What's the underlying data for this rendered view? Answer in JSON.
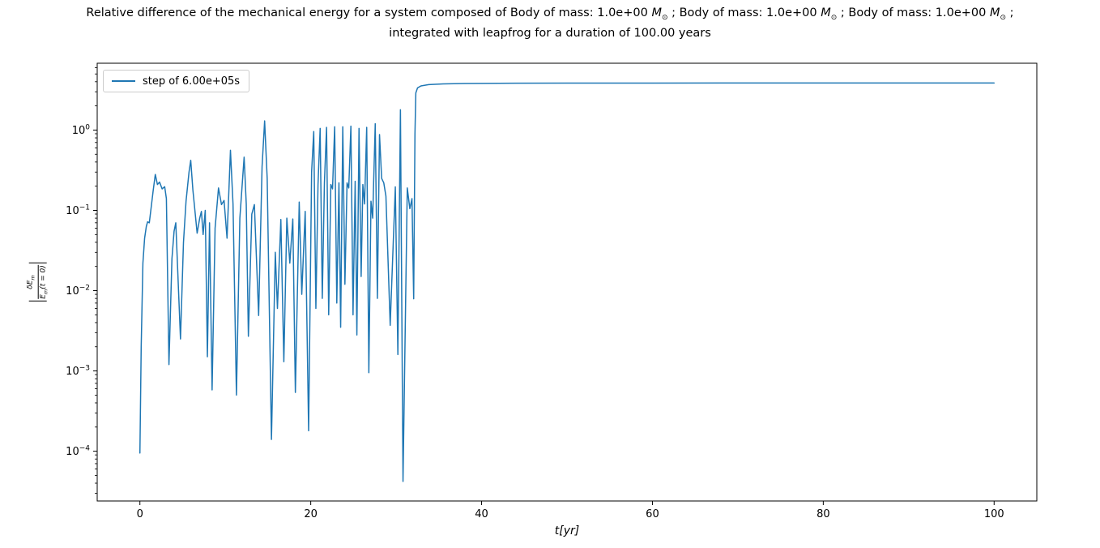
{
  "figure": {
    "title_line1_parts": [
      {
        "text": "Relative difference of the mechanical energy for a system composed of Body of mass: 1.0e+00 "
      },
      {
        "text": "M",
        "italic": true
      },
      {
        "text": "⊙",
        "sub": true
      },
      {
        "text": " ; Body of mass: 1.0e+00 "
      },
      {
        "text": "M",
        "italic": true
      },
      {
        "text": "⊙",
        "sub": true
      },
      {
        "text": " ; Body of mass: 1.0e+00 "
      },
      {
        "text": "M",
        "italic": true
      },
      {
        "text": "⊙",
        "sub": true
      },
      {
        "text": " ;"
      }
    ],
    "title_line2": "integrated with leapfrog for a duration of 100.00 years"
  },
  "chart_data": {
    "type": "line",
    "title": "Relative difference of the mechanical energy for a system composed of Body of mass: 1.0e+00 M⊙ ; Body of mass: 1.0e+00 M⊙ ; Body of mass: 1.0e+00 M⊙ ; integrated with leapfrog for a duration of 100.00 years",
    "xlabel": "t[yr]",
    "ylabel": "|δEm / Em(t = 0)|",
    "ylabel_parts": {
      "numerator": "δE",
      "numerator_sub": "m",
      "denominator": "E",
      "denominator_sub": "m",
      "denominator_rest": "(t = 0)"
    },
    "xscale": "linear",
    "yscale": "log",
    "xlim": [
      -5,
      105
    ],
    "ylim": [
      2.4e-05,
      6.8
    ],
    "x_ticks": [
      0,
      20,
      40,
      60,
      80,
      100
    ],
    "y_tick_exponents": [
      0,
      -1,
      -2,
      -3,
      -4
    ],
    "grid": false,
    "legend": {
      "position": "upper left",
      "entries": [
        {
          "label": "step of 6.00e+05s",
          "color": "#1f77b4"
        }
      ]
    },
    "series": [
      {
        "name": "step of 6.00e+05s",
        "color": "#1f77b4",
        "points": [
          [
            0.0,
            9.5e-05
          ],
          [
            0.15,
            0.002
          ],
          [
            0.35,
            0.022
          ],
          [
            0.55,
            0.045
          ],
          [
            0.75,
            0.063
          ],
          [
            0.9,
            0.072
          ],
          [
            1.1,
            0.07
          ],
          [
            1.3,
            0.105
          ],
          [
            1.55,
            0.175
          ],
          [
            1.8,
            0.28
          ],
          [
            2.05,
            0.21
          ],
          [
            2.3,
            0.225
          ],
          [
            2.6,
            0.185
          ],
          [
            2.9,
            0.197
          ],
          [
            3.1,
            0.14
          ],
          [
            3.4,
            0.0012
          ],
          [
            3.75,
            0.025
          ],
          [
            4.0,
            0.055
          ],
          [
            4.2,
            0.07
          ],
          [
            4.75,
            0.0025
          ],
          [
            5.1,
            0.04
          ],
          [
            5.4,
            0.13
          ],
          [
            5.75,
            0.3
          ],
          [
            5.95,
            0.42
          ],
          [
            6.2,
            0.18
          ],
          [
            6.7,
            0.052
          ],
          [
            7.0,
            0.08
          ],
          [
            7.2,
            0.097
          ],
          [
            7.4,
            0.05
          ],
          [
            7.65,
            0.1
          ],
          [
            7.9,
            0.0015
          ],
          [
            8.15,
            0.07
          ],
          [
            8.45,
            0.00058
          ],
          [
            8.8,
            0.06
          ],
          [
            9.2,
            0.19
          ],
          [
            9.55,
            0.118
          ],
          [
            9.85,
            0.133
          ],
          [
            10.2,
            0.045
          ],
          [
            10.6,
            0.56
          ],
          [
            10.9,
            0.12
          ],
          [
            11.3,
            0.0005
          ],
          [
            11.7,
            0.08
          ],
          [
            12.2,
            0.46
          ],
          [
            12.45,
            0.12
          ],
          [
            12.7,
            0.0027
          ],
          [
            13.1,
            0.09
          ],
          [
            13.4,
            0.118
          ],
          [
            13.9,
            0.0049
          ],
          [
            14.3,
            0.35
          ],
          [
            14.6,
            1.3
          ],
          [
            14.9,
            0.25
          ],
          [
            15.4,
            0.00014
          ],
          [
            15.85,
            0.03
          ],
          [
            16.1,
            0.006
          ],
          [
            16.5,
            0.077
          ],
          [
            16.85,
            0.0013
          ],
          [
            17.2,
            0.08
          ],
          [
            17.55,
            0.022
          ],
          [
            17.9,
            0.078
          ],
          [
            18.2,
            0.00054
          ],
          [
            18.65,
            0.127
          ],
          [
            18.95,
            0.009
          ],
          [
            19.35,
            0.097
          ],
          [
            19.75,
            0.00018
          ],
          [
            20.1,
            0.3
          ],
          [
            20.35,
            0.96
          ],
          [
            20.6,
            0.006
          ],
          [
            20.85,
            0.21
          ],
          [
            21.1,
            1.05
          ],
          [
            21.35,
            0.008
          ],
          [
            21.6,
            0.22
          ],
          [
            21.85,
            1.08
          ],
          [
            22.1,
            0.005
          ],
          [
            22.35,
            0.21
          ],
          [
            22.55,
            0.185
          ],
          [
            22.8,
            1.1
          ],
          [
            23.05,
            0.007
          ],
          [
            23.3,
            0.22
          ],
          [
            23.5,
            0.0035
          ],
          [
            23.75,
            1.1
          ],
          [
            24.0,
            0.012
          ],
          [
            24.25,
            0.22
          ],
          [
            24.45,
            0.19
          ],
          [
            24.7,
            1.12
          ],
          [
            24.95,
            0.005
          ],
          [
            25.2,
            0.23
          ],
          [
            25.4,
            0.0028
          ],
          [
            25.65,
            1.05
          ],
          [
            25.9,
            0.015
          ],
          [
            26.1,
            0.21
          ],
          [
            26.3,
            0.12
          ],
          [
            26.55,
            1.08
          ],
          [
            26.8,
            0.00095
          ],
          [
            27.05,
            0.13
          ],
          [
            27.25,
            0.08
          ],
          [
            27.55,
            1.2
          ],
          [
            27.8,
            0.008
          ],
          [
            28.05,
            0.88
          ],
          [
            28.3,
            0.25
          ],
          [
            28.55,
            0.22
          ],
          [
            28.8,
            0.15
          ],
          [
            29.3,
            0.0037
          ],
          [
            29.9,
            0.196
          ],
          [
            30.2,
            0.0016
          ],
          [
            30.5,
            1.79
          ],
          [
            30.8,
            4.2e-05
          ],
          [
            31.3,
            0.19
          ],
          [
            31.6,
            0.105
          ],
          [
            31.85,
            0.14
          ],
          [
            32.05,
            0.0079
          ],
          [
            32.2,
            0.9
          ],
          [
            32.3,
            2.9
          ],
          [
            32.5,
            3.35
          ],
          [
            32.9,
            3.55
          ],
          [
            33.8,
            3.68
          ],
          [
            35.5,
            3.76
          ],
          [
            38,
            3.8
          ],
          [
            42,
            3.83
          ],
          [
            50,
            3.85
          ],
          [
            60,
            3.85
          ],
          [
            70,
            3.86
          ],
          [
            85,
            3.86
          ],
          [
            100,
            3.86
          ]
        ]
      }
    ]
  },
  "colors": {
    "line": "#1f77b4",
    "frame": "#000000",
    "background": "#ffffff",
    "legend_border": "#cccccc",
    "text": "#000000"
  }
}
